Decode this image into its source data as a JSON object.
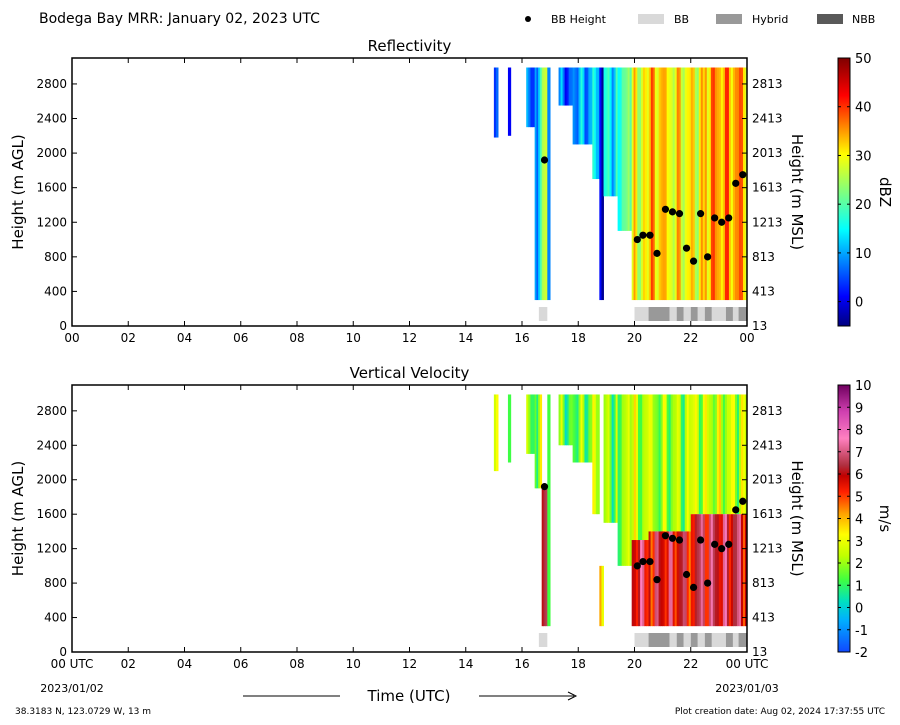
{
  "header": {
    "title": "Bodega Bay MRR:  January 02, 2023 UTC",
    "legend": [
      {
        "label": "BB Height",
        "marker": "dot",
        "color": "#000000"
      },
      {
        "label": "BB",
        "color": "#d9d9d9"
      },
      {
        "label": "Hybrid",
        "color": "#999999"
      },
      {
        "label": "NBB",
        "color": "#595959"
      }
    ]
  },
  "footer": {
    "location": "38.3183 N, 123.0729 W, 13 m",
    "created": "Plot creation date: Aug 02, 2024 17:37:55 UTC",
    "xlabel": "Time (UTC)",
    "start_date": "2023/01/02",
    "end_date": "2023/01/03"
  },
  "chart_data": [
    {
      "type": "heatmap",
      "title": "Reflectivity",
      "ylabel_left": "Height (m AGL)",
      "ylabel_right": "Height (m MSL)",
      "xlim": [
        0,
        24
      ],
      "ylim": [
        0,
        3100
      ],
      "xticks": [
        "00",
        "02",
        "04",
        "06",
        "08",
        "10",
        "12",
        "14",
        "16",
        "18",
        "20",
        "22",
        "00"
      ],
      "yticks_left": [
        0,
        400,
        800,
        1200,
        1600,
        2000,
        2400,
        2800
      ],
      "yticks_right": [
        "13",
        "413",
        "813",
        "1213",
        "1613",
        "2013",
        "2413",
        "2813"
      ],
      "colorbar": {
        "label": "dBZ",
        "min": -5,
        "max": 50,
        "ticks": [
          "0",
          "10",
          "20",
          "30",
          "40",
          "50"
        ],
        "colormap": "jet"
      },
      "bb_height": {
        "time": [
          16.8,
          20.1,
          20.3,
          20.55,
          20.8,
          21.1,
          21.35,
          21.6,
          21.85,
          22.1,
          22.35,
          22.6,
          22.85,
          23.1,
          23.35,
          23.6,
          23.85
        ],
        "height": [
          1920,
          1000,
          1050,
          1050,
          840,
          1350,
          1320,
          1300,
          900,
          750,
          1300,
          800,
          1250,
          1200,
          1250,
          1650,
          1750
        ]
      },
      "bb_type": [
        {
          "start": 16.6,
          "end": 16.9,
          "type": "BB"
        },
        {
          "start": 20.0,
          "end": 20.5,
          "type": "BB"
        },
        {
          "start": 20.5,
          "end": 21.25,
          "type": "Hybrid"
        },
        {
          "start": 21.25,
          "end": 21.5,
          "type": "BB"
        },
        {
          "start": 21.5,
          "end": 21.75,
          "type": "Hybrid"
        },
        {
          "start": 21.75,
          "end": 22.0,
          "type": "BB"
        },
        {
          "start": 22.0,
          "end": 22.25,
          "type": "Hybrid"
        },
        {
          "start": 22.25,
          "end": 22.5,
          "type": "BB"
        },
        {
          "start": 22.5,
          "end": 22.75,
          "type": "Hybrid"
        },
        {
          "start": 22.75,
          "end": 23.25,
          "type": "BB"
        },
        {
          "start": 23.25,
          "end": 23.5,
          "type": "Hybrid"
        },
        {
          "start": 23.5,
          "end": 23.7,
          "type": "BB"
        },
        {
          "start": 23.7,
          "end": 24.0,
          "type": "Hybrid"
        }
      ],
      "echo_segments": [
        {
          "start": 15.0,
          "end": 15.15,
          "top": 2990,
          "base": 2180,
          "value": 0
        },
        {
          "start": 15.5,
          "end": 15.6,
          "top": 2990,
          "base": 2200,
          "value": 2
        },
        {
          "start": 16.15,
          "end": 16.45,
          "top": 2990,
          "base": 2300,
          "value": 5
        },
        {
          "start": 16.45,
          "end": 16.7,
          "top": 2990,
          "base": 300,
          "value": 13
        },
        {
          "start": 16.7,
          "end": 16.9,
          "top": 2990,
          "base": 300,
          "value": 24
        },
        {
          "start": 16.9,
          "end": 17.0,
          "top": 2990,
          "base": 300,
          "value": 14
        },
        {
          "start": 17.3,
          "end": 17.8,
          "top": 2990,
          "base": 2550,
          "value": 6
        },
        {
          "start": 17.8,
          "end": 18.5,
          "top": 2990,
          "base": 2100,
          "value": 10
        },
        {
          "start": 18.5,
          "end": 18.75,
          "top": 2990,
          "base": 1700,
          "value": 12
        },
        {
          "start": 18.75,
          "end": 18.9,
          "top": 2990,
          "base": 300,
          "value": 3
        },
        {
          "start": 18.9,
          "end": 19.4,
          "top": 2990,
          "base": 1500,
          "value": 15
        },
        {
          "start": 19.4,
          "end": 19.9,
          "top": 2990,
          "base": 1100,
          "value": 20
        },
        {
          "start": 19.9,
          "end": 20.3,
          "top": 2990,
          "base": 300,
          "value": 28
        },
        {
          "start": 20.3,
          "end": 21.0,
          "top": 2990,
          "base": 300,
          "value": 33
        },
        {
          "start": 21.0,
          "end": 22.5,
          "top": 2990,
          "base": 300,
          "value": 30
        },
        {
          "start": 22.5,
          "end": 24.0,
          "top": 2990,
          "base": 300,
          "value": 35
        }
      ]
    },
    {
      "type": "heatmap",
      "title": "Vertical Velocity",
      "ylabel_left": "Height (m AGL)",
      "ylabel_right": "Height (m MSL)",
      "xlim": [
        0,
        24
      ],
      "ylim": [
        0,
        3100
      ],
      "xticks": [
        "00 UTC",
        "02",
        "04",
        "06",
        "08",
        "10",
        "12",
        "14",
        "16",
        "18",
        "20",
        "22",
        "00 UTC"
      ],
      "yticks_left": [
        0,
        400,
        800,
        1200,
        1600,
        2000,
        2400,
        2800
      ],
      "yticks_right": [
        "13",
        "413",
        "813",
        "1213",
        "1613",
        "2013",
        "2413",
        "2813"
      ],
      "colorbar": {
        "label": "m/s",
        "min": -2,
        "max": 10,
        "ticks": [
          "-2",
          "-1",
          "0",
          "1",
          "2",
          "3",
          "4",
          "5",
          "6",
          "7",
          "8",
          "9",
          "10"
        ],
        "colormap": "velocity"
      },
      "bb_height": {
        "time": [
          16.8,
          20.1,
          20.3,
          20.55,
          20.8,
          21.1,
          21.35,
          21.6,
          21.85,
          22.1,
          22.35,
          22.6,
          22.85,
          23.1,
          23.35,
          23.6,
          23.85
        ],
        "height": [
          1920,
          1000,
          1050,
          1050,
          840,
          1350,
          1320,
          1300,
          900,
          750,
          1300,
          800,
          1250,
          1200,
          1250,
          1650,
          1750
        ]
      },
      "bb_type": [
        {
          "start": 16.6,
          "end": 16.9,
          "type": "BB"
        },
        {
          "start": 20.0,
          "end": 20.5,
          "type": "BB"
        },
        {
          "start": 20.5,
          "end": 21.25,
          "type": "Hybrid"
        },
        {
          "start": 21.25,
          "end": 21.5,
          "type": "BB"
        },
        {
          "start": 21.5,
          "end": 21.75,
          "type": "Hybrid"
        },
        {
          "start": 21.75,
          "end": 22.0,
          "type": "BB"
        },
        {
          "start": 22.0,
          "end": 22.25,
          "type": "Hybrid"
        },
        {
          "start": 22.25,
          "end": 22.5,
          "type": "BB"
        },
        {
          "start": 22.5,
          "end": 22.75,
          "type": "Hybrid"
        },
        {
          "start": 22.75,
          "end": 23.25,
          "type": "BB"
        },
        {
          "start": 23.25,
          "end": 23.5,
          "type": "Hybrid"
        },
        {
          "start": 23.5,
          "end": 23.7,
          "type": "BB"
        },
        {
          "start": 23.7,
          "end": 24.0,
          "type": "Hybrid"
        }
      ],
      "echo_segments": [
        {
          "start": 15.0,
          "end": 15.15,
          "top": 2990,
          "base": 2100,
          "value": 1.8
        },
        {
          "start": 15.5,
          "end": 15.6,
          "top": 2990,
          "base": 2200,
          "value": 1.5
        },
        {
          "start": 16.15,
          "end": 16.45,
          "top": 2990,
          "base": 2300,
          "value": 1.3
        },
        {
          "start": 16.45,
          "end": 16.7,
          "top": 2990,
          "base": 1900,
          "value": 2.2
        },
        {
          "start": 16.7,
          "end": 16.9,
          "top": 1900,
          "base": 300,
          "value": 5.8
        },
        {
          "start": 16.9,
          "end": 17.0,
          "top": 2990,
          "base": 300,
          "value": 2.5
        },
        {
          "start": 17.3,
          "end": 17.8,
          "top": 2990,
          "base": 2400,
          "value": 1.4
        },
        {
          "start": 17.8,
          "end": 18.5,
          "top": 2990,
          "base": 2200,
          "value": 1.6
        },
        {
          "start": 18.5,
          "end": 18.75,
          "top": 2990,
          "base": 1600,
          "value": 2.2
        },
        {
          "start": 18.75,
          "end": 18.9,
          "top": 1000,
          "base": 300,
          "value": 4.5
        },
        {
          "start": 18.9,
          "end": 19.4,
          "top": 2990,
          "base": 1500,
          "value": 1.8
        },
        {
          "start": 19.4,
          "end": 19.9,
          "top": 2990,
          "base": 1000,
          "value": 2.0
        },
        {
          "start": 19.9,
          "end": 20.5,
          "top": 2990,
          "base": 1300,
          "value": 2.2
        },
        {
          "start": 19.9,
          "end": 20.5,
          "top": 1300,
          "base": 300,
          "value": 6.2
        },
        {
          "start": 20.5,
          "end": 22.0,
          "top": 2990,
          "base": 1400,
          "value": 2.0
        },
        {
          "start": 20.5,
          "end": 22.0,
          "top": 1400,
          "base": 300,
          "value": 6.0
        },
        {
          "start": 22.0,
          "end": 24.0,
          "top": 2990,
          "base": 1600,
          "value": 2.4
        },
        {
          "start": 22.0,
          "end": 24.0,
          "top": 1600,
          "base": 300,
          "value": 6.3
        }
      ]
    }
  ]
}
